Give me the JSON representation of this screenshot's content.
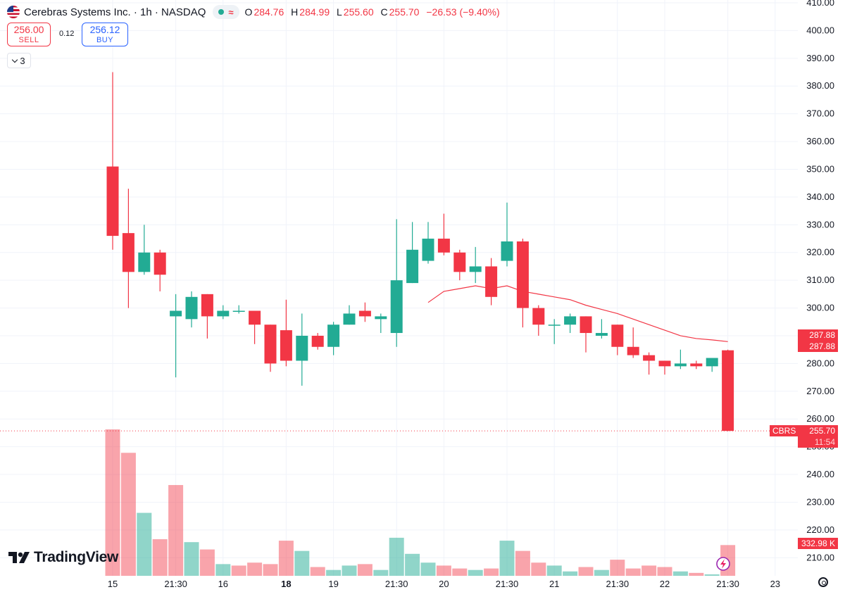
{
  "header": {
    "title": "Cerebras Systems Inc. · 1h · NASDAQ",
    "ohlc": {
      "o_label": "O",
      "o": "284.76",
      "h_label": "H",
      "h": "284.99",
      "l_label": "L",
      "l": "255.60",
      "c_label": "C",
      "c": "255.70",
      "change": "−26.53 (−9.40%)"
    }
  },
  "trade": {
    "sell_price": "256.00",
    "sell_label": "SELL",
    "spread": "0.12",
    "buy_price": "256.12",
    "buy_label": "BUY"
  },
  "indicators_count": "3",
  "brand": "TradingView",
  "price_labels": {
    "ma_1": "287.88",
    "ma_2": "287.88",
    "symbol": "CBRS",
    "last_price": "255.70",
    "countdown": "11:54",
    "volume": "332.98 K"
  },
  "colors": {
    "up": "#22ab94",
    "down": "#f23645",
    "ma": "#f23645"
  },
  "chart_data": {
    "type": "candlestick",
    "y_axis_ticks": [
      410,
      400,
      390,
      380,
      370,
      360,
      350,
      340,
      330,
      320,
      310,
      300,
      290,
      280,
      270,
      260,
      250,
      240,
      230,
      220,
      210
    ],
    "ylim": [
      205,
      410
    ],
    "x_tick_labels": [
      {
        "label": "15",
        "index": 0
      },
      {
        "label": "21:30",
        "index": 4
      },
      {
        "label": "16",
        "index": 7
      },
      {
        "label": "18",
        "index": 11
      },
      {
        "label": "19",
        "index": 14
      },
      {
        "label": "21:30",
        "index": 18
      },
      {
        "label": "20",
        "index": 21
      },
      {
        "label": "21:30",
        "index": 25
      },
      {
        "label": "21",
        "index": 28
      },
      {
        "label": "21:30",
        "index": 32
      },
      {
        "label": "22",
        "index": 35
      },
      {
        "label": "21:30",
        "index": 39
      },
      {
        "label": "23",
        "index": 42
      }
    ],
    "candles": [
      [
        351,
        385,
        321,
        326
      ],
      [
        327,
        343,
        300,
        313
      ],
      [
        313,
        330,
        312,
        320
      ],
      [
        320,
        321,
        306,
        312
      ],
      [
        297,
        305,
        275,
        299
      ],
      [
        296,
        306,
        293,
        304
      ],
      [
        305,
        305,
        289,
        297
      ],
      [
        297,
        301,
        296,
        299
      ],
      [
        299,
        301,
        298,
        299
      ],
      [
        299,
        299,
        287,
        294
      ],
      [
        294,
        294,
        277,
        280
      ],
      [
        292,
        303,
        279,
        281
      ],
      [
        281,
        298,
        272,
        290
      ],
      [
        290,
        291,
        285,
        286
      ],
      [
        286,
        295,
        283,
        294
      ],
      [
        294,
        301,
        294,
        298
      ],
      [
        299,
        302,
        295,
        297
      ],
      [
        296,
        298,
        291,
        297
      ],
      [
        291,
        332,
        286,
        310
      ],
      [
        309,
        331,
        309,
        321
      ],
      [
        317,
        331,
        316,
        325
      ],
      [
        325,
        334,
        319,
        320
      ],
      [
        320,
        321,
        310,
        313
      ],
      [
        313,
        322,
        309,
        315
      ],
      [
        315,
        318,
        301,
        304
      ],
      [
        317,
        338,
        315,
        324
      ],
      [
        324,
        325,
        293,
        300
      ],
      [
        300,
        301,
        290,
        294
      ],
      [
        294,
        296,
        287,
        294
      ],
      [
        294,
        298,
        291,
        297
      ],
      [
        297,
        297,
        284,
        291
      ],
      [
        290,
        296,
        289,
        291
      ],
      [
        294,
        294,
        283,
        286
      ],
      [
        286,
        293,
        282,
        283
      ],
      [
        283,
        284,
        276,
        281
      ],
      [
        281,
        281,
        276,
        279
      ],
      [
        279,
        285,
        278,
        280
      ],
      [
        280,
        281,
        278,
        279
      ],
      [
        279,
        282,
        277,
        282
      ],
      [
        284.76,
        284.99,
        255.6,
        255.7
      ]
    ],
    "volume": [
      {
        "value": 100,
        "dir": "down"
      },
      {
        "value": 84,
        "dir": "down"
      },
      {
        "value": 43,
        "dir": "up"
      },
      {
        "value": 25,
        "dir": "down"
      },
      {
        "value": 62,
        "dir": "down"
      },
      {
        "value": 23,
        "dir": "up"
      },
      {
        "value": 18,
        "dir": "down"
      },
      {
        "value": 8,
        "dir": "up"
      },
      {
        "value": 7,
        "dir": "down"
      },
      {
        "value": 9,
        "dir": "down"
      },
      {
        "value": 8,
        "dir": "down"
      },
      {
        "value": 24,
        "dir": "down"
      },
      {
        "value": 17,
        "dir": "up"
      },
      {
        "value": 6,
        "dir": "down"
      },
      {
        "value": 4,
        "dir": "up"
      },
      {
        "value": 7,
        "dir": "up"
      },
      {
        "value": 8,
        "dir": "down"
      },
      {
        "value": 4,
        "dir": "up"
      },
      {
        "value": 26,
        "dir": "up"
      },
      {
        "value": 15,
        "dir": "up"
      },
      {
        "value": 9,
        "dir": "up"
      },
      {
        "value": 7,
        "dir": "down"
      },
      {
        "value": 5,
        "dir": "down"
      },
      {
        "value": 4,
        "dir": "up"
      },
      {
        "value": 5,
        "dir": "down"
      },
      {
        "value": 24,
        "dir": "up"
      },
      {
        "value": 17,
        "dir": "down"
      },
      {
        "value": 9,
        "dir": "down"
      },
      {
        "value": 7,
        "dir": "up"
      },
      {
        "value": 3,
        "dir": "up"
      },
      {
        "value": 6,
        "dir": "down"
      },
      {
        "value": 4,
        "dir": "up"
      },
      {
        "value": 11,
        "dir": "down"
      },
      {
        "value": 5,
        "dir": "down"
      },
      {
        "value": 7,
        "dir": "down"
      },
      {
        "value": 6,
        "dir": "down"
      },
      {
        "value": 3,
        "dir": "up"
      },
      {
        "value": 2,
        "dir": "down"
      },
      {
        "value": 1,
        "dir": "up"
      },
      {
        "value": 21,
        "dir": "down"
      }
    ],
    "ma_start_index": 20,
    "ma": [
      302,
      306,
      307,
      308,
      307,
      308,
      306,
      305,
      304,
      303,
      301,
      299.5,
      298,
      296,
      294,
      292,
      290,
      289,
      288.5,
      287.88
    ],
    "last_price_line": 255.7
  }
}
